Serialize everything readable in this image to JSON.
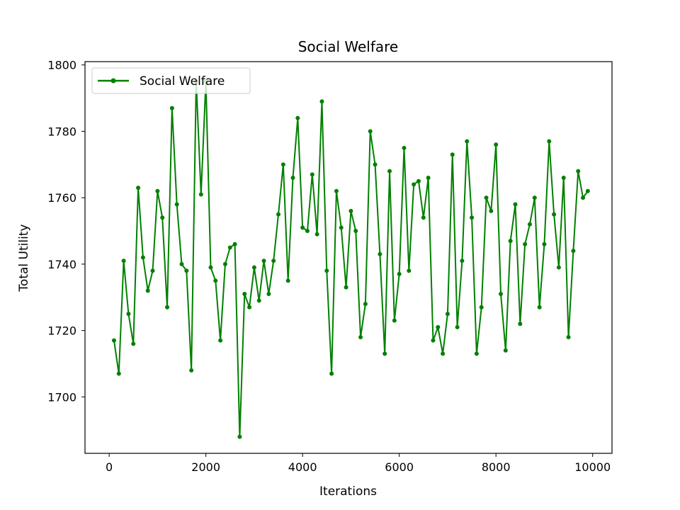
{
  "chart_data": {
    "type": "line",
    "title": "Social Welfare",
    "xlabel": "Iterations",
    "ylabel": "Total Utility",
    "xlim": [
      -500,
      10400
    ],
    "ylim": [
      1683,
      1801
    ],
    "xticks": [
      0,
      2000,
      4000,
      6000,
      8000,
      10000
    ],
    "yticks": [
      1700,
      1720,
      1740,
      1760,
      1780,
      1800
    ],
    "xtick_labels": [
      "0",
      "2000",
      "4000",
      "6000",
      "8000",
      "10000"
    ],
    "ytick_labels": [
      "1700",
      "1720",
      "1740",
      "1760",
      "1780",
      "1800"
    ],
    "grid": false,
    "legend": {
      "location": "upper left",
      "entries": [
        "Social Welfare"
      ]
    },
    "series": [
      {
        "name": "Social Welfare",
        "color": "#008000",
        "marker": "circle",
        "x": [
          100,
          200,
          300,
          400,
          500,
          600,
          700,
          800,
          900,
          1000,
          1100,
          1200,
          1300,
          1400,
          1500,
          1600,
          1700,
          1800,
          1900,
          2000,
          2100,
          2200,
          2300,
          2400,
          2500,
          2600,
          2700,
          2800,
          2900,
          3000,
          3100,
          3200,
          3300,
          3400,
          3500,
          3600,
          3700,
          3800,
          3900,
          4000,
          4100,
          4200,
          4300,
          4400,
          4500,
          4600,
          4700,
          4800,
          4900,
          5000,
          5100,
          5200,
          5300,
          5400,
          5500,
          5600,
          5700,
          5800,
          5900,
          6000,
          6100,
          6200,
          6300,
          6400,
          6500,
          6600,
          6700,
          6800,
          6900,
          7000,
          7100,
          7200,
          7300,
          7400,
          7500,
          7600,
          7700,
          7800,
          7900,
          8000,
          8100,
          8200,
          8300,
          8400,
          8500,
          8600,
          8700,
          8800,
          8900,
          9000,
          9100,
          9200,
          9300,
          9400,
          9500,
          9600,
          9700,
          9800,
          9900
        ],
        "values": [
          1717,
          1707,
          1741,
          1725,
          1716,
          1763,
          1742,
          1732,
          1738,
          1762,
          1754,
          1727,
          1787,
          1758,
          1740,
          1738,
          1708,
          1795,
          1761,
          1795,
          1739,
          1735,
          1717,
          1740,
          1745,
          1746,
          1688,
          1731,
          1727,
          1739,
          1729,
          1741,
          1731,
          1741,
          1755,
          1770,
          1735,
          1766,
          1784,
          1751,
          1750,
          1767,
          1749,
          1789,
          1738,
          1707,
          1762,
          1751,
          1733,
          1756,
          1750,
          1718,
          1728,
          1780,
          1770,
          1743,
          1713,
          1768,
          1723,
          1737,
          1775,
          1738,
          1764,
          1765,
          1754,
          1766,
          1717,
          1721,
          1713,
          1725,
          1773,
          1721,
          1741,
          1777,
          1754,
          1713,
          1727,
          1760,
          1756,
          1776,
          1731,
          1714,
          1747,
          1758,
          1722,
          1746,
          1752,
          1760,
          1727,
          1746,
          1777,
          1755,
          1739,
          1766,
          1718,
          1744,
          1768,
          1760,
          1762
        ]
      }
    ]
  }
}
